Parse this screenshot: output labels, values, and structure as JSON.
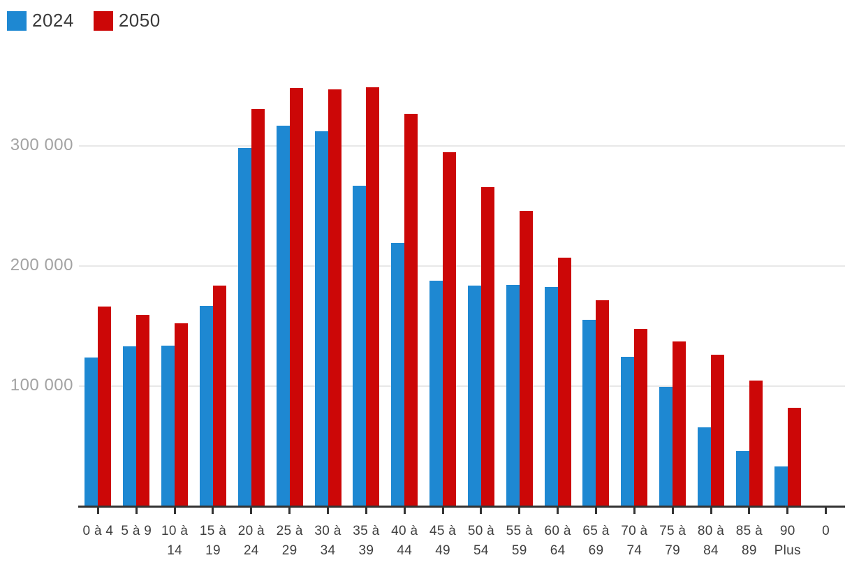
{
  "chart_data": {
    "type": "bar",
    "title": "",
    "categories": [
      "0 à 4",
      "5 à 9",
      "10 à 14",
      "15 à 19",
      "20 à 24",
      "25 à 29",
      "30 à 34",
      "35 à 39",
      "40 à 44",
      "45 à 49",
      "50 à 54",
      "55 à 59",
      "60 à 64",
      "65 à 69",
      "70 à 74",
      "75 à 79",
      "80 à 84",
      "85 à 89",
      "90 Plus",
      "0"
    ],
    "category_label_lines": [
      [
        "0 à 4"
      ],
      [
        "5 à 9"
      ],
      [
        "10 à",
        "14"
      ],
      [
        "15 à",
        "19"
      ],
      [
        "20 à",
        "24"
      ],
      [
        "25 à",
        "29"
      ],
      [
        "30 à",
        "34"
      ],
      [
        "35 à",
        "39"
      ],
      [
        "40 à",
        "44"
      ],
      [
        "45 à",
        "49"
      ],
      [
        "50 à",
        "54"
      ],
      [
        "55 à",
        "59"
      ],
      [
        "60 à",
        "64"
      ],
      [
        "65 à",
        "69"
      ],
      [
        "70 à",
        "74"
      ],
      [
        "75 à",
        "79"
      ],
      [
        "80 à",
        "84"
      ],
      [
        "85 à",
        "89"
      ],
      [
        "90",
        "Plus"
      ],
      [
        "0"
      ]
    ],
    "series": [
      {
        "name": "2024",
        "color": "#1e88d2",
        "values": [
          124000,
          133000,
          134000,
          167000,
          298000,
          317000,
          312000,
          267000,
          219000,
          188000,
          184000,
          184500,
          182500,
          155000,
          124500,
          99500,
          65500,
          46000,
          33000,
          0
        ]
      },
      {
        "name": "2050",
        "color": "#cc0707",
        "values": [
          166000,
          159500,
          152500,
          184000,
          331000,
          348000,
          347000,
          349000,
          327000,
          295000,
          265500,
          246000,
          207000,
          171500,
          147500,
          137000,
          126000,
          104500,
          82000,
          0
        ]
      }
    ],
    "y_axis": {
      "tick_values": [
        100000,
        200000,
        300000
      ],
      "tick_labels": [
        "100 000",
        "200 000",
        "300 000"
      ],
      "ylim": [
        0,
        365000
      ],
      "grid": true
    },
    "xlabel": "",
    "ylabel": "",
    "legend_position": "top-left"
  },
  "colors": {
    "background": "#ffffff",
    "axis": "#333333",
    "grid": "#e8e8e8",
    "y_label_text": "#a3a3a3",
    "x_label_text": "#3f3f3f",
    "legend_text": "#3a3a3a",
    "series_2024": "#1e88d2",
    "series_2050": "#cc0707"
  }
}
